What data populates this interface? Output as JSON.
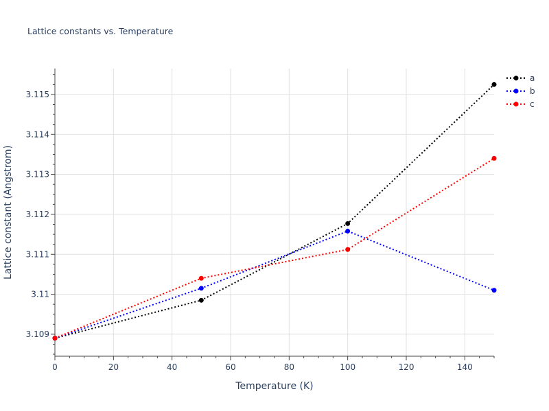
{
  "chart_data": {
    "type": "line",
    "title": "Lattice constants vs. Temperature",
    "xlabel": "Temperature (K)",
    "ylabel": "Lattice constant (Angstrom)",
    "x": [
      0,
      50,
      100,
      150
    ],
    "xlim": [
      0,
      150
    ],
    "ylim": [
      3.10845,
      3.11565
    ],
    "xticks": [
      0,
      20,
      40,
      60,
      80,
      100,
      120,
      140
    ],
    "xtick_labels": [
      "0",
      "20",
      "40",
      "60",
      "80",
      "100",
      "120",
      "140"
    ],
    "yticks": [
      3.109,
      3.11,
      3.111,
      3.112,
      3.113,
      3.114,
      3.115
    ],
    "ytick_labels": [
      "3.109",
      "3.11",
      "3.111",
      "3.112",
      "3.113",
      "3.114",
      "3.115"
    ],
    "grid": true,
    "legend_position": "top-right",
    "series": [
      {
        "name": "a",
        "color": "#000000",
        "values": [
          3.1089,
          3.10985,
          3.11177,
          3.11525
        ]
      },
      {
        "name": "b",
        "color": "#0000ff",
        "values": [
          3.1089,
          3.11015,
          3.11158,
          3.1101
        ]
      },
      {
        "name": "c",
        "color": "#ff0000",
        "values": [
          3.1089,
          3.1104,
          3.11112,
          3.1134
        ]
      }
    ]
  }
}
